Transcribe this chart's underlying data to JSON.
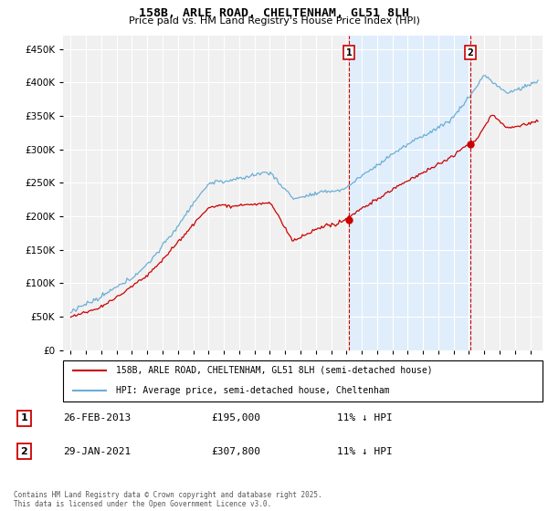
{
  "title": "158B, ARLE ROAD, CHELTENHAM, GL51 8LH",
  "subtitle": "Price paid vs. HM Land Registry's House Price Index (HPI)",
  "legend_line1": "158B, ARLE ROAD, CHELTENHAM, GL51 8LH (semi-detached house)",
  "legend_line2": "HPI: Average price, semi-detached house, Cheltenham",
  "annotation1_date": "26-FEB-2013",
  "annotation1_price": "£195,000",
  "annotation1_hpi": "11% ↓ HPI",
  "annotation1_year": 2013.15,
  "annotation1_price_val": 195000,
  "annotation2_date": "29-JAN-2021",
  "annotation2_price": "£307,800",
  "annotation2_hpi": "11% ↓ HPI",
  "annotation2_year": 2021.08,
  "annotation2_price_val": 307800,
  "footer": "Contains HM Land Registry data © Crown copyright and database right 2025.\nThis data is licensed under the Open Government Licence v3.0.",
  "hpi_line_color": "#6baed6",
  "price_line_color": "#cc0000",
  "annotation_color": "#cc0000",
  "shade_color": "#ddeeff",
  "ylim": [
    0,
    470000
  ],
  "yticks": [
    0,
    50000,
    100000,
    150000,
    200000,
    250000,
    300000,
    350000,
    400000,
    450000
  ],
  "xlim_start": 1994.5,
  "xlim_end": 2025.8,
  "background_color": "#f0f0f0",
  "seed": 12345
}
